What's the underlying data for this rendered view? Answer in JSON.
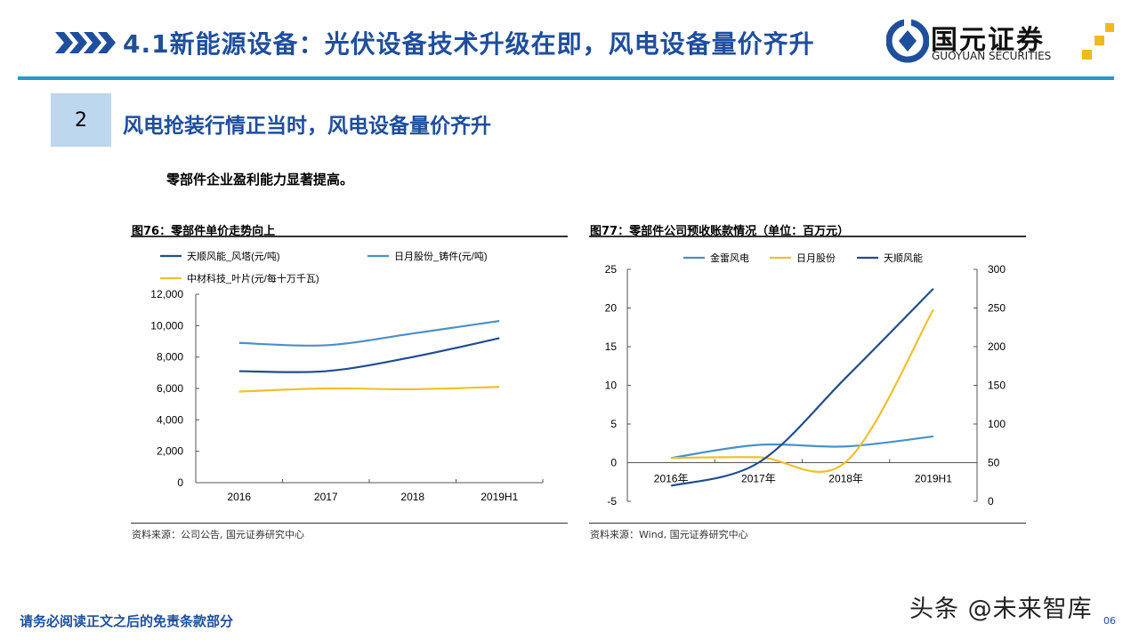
{
  "header": {
    "title": "4.1新能源设备：光伏设备技术升级在即，风电设备量价齐升",
    "logo_cn": "国元证券",
    "logo_en": "GUOYUAN SECURITIES",
    "accent": "#1f4e9c",
    "line_color": "#1e9bd7"
  },
  "section": {
    "number": "2",
    "title": "风电抢装行情正当时，风电设备量价齐升"
  },
  "lead": "零部件企业盈利能力显著提高。",
  "chart_data": [
    {
      "type": "line",
      "title": "图76：零部件单价走势向上",
      "categories": [
        "2016",
        "2017",
        "2018",
        "2019H1"
      ],
      "ylim": [
        0,
        12000
      ],
      "yticks": [
        "0",
        "2,000",
        "4,000",
        "6,000",
        "8,000",
        "10,000",
        "12,000"
      ],
      "legend": "top",
      "series": [
        {
          "name": "天顺风能_风塔(元/吨)",
          "color": "#1f4e8c",
          "values": [
            7100,
            7100,
            8000,
            9200
          ]
        },
        {
          "name": "日月股份_铸件(元/吨)",
          "color": "#4a90c8",
          "values": [
            8900,
            8750,
            9500,
            10300
          ]
        },
        {
          "name": "中材科技_叶片(元/每十万千瓦)",
          "color": "#f0c030",
          "values": [
            5800,
            6000,
            5950,
            6100
          ]
        }
      ],
      "source": "资料来源：公司公告, 国元证券研究中心"
    },
    {
      "type": "line",
      "title": "图77：零部件公司预收账款情况（单位：百万元）",
      "categories": [
        "2016年",
        "2017年",
        "2018年",
        "2019H1"
      ],
      "ylim": [
        -5,
        25
      ],
      "yticks": [
        "-5",
        "0",
        "5",
        "10",
        "15",
        "20",
        "25"
      ],
      "y2lim": [
        0,
        300
      ],
      "y2ticks": [
        "0",
        "50",
        "100",
        "150",
        "200",
        "250",
        "300"
      ],
      "legend": "top",
      "series": [
        {
          "name": "金雷风电",
          "color": "#4a90c8",
          "axis": "left",
          "values": [
            0.6,
            2.3,
            2.1,
            3.4
          ]
        },
        {
          "name": "日月股份",
          "color": "#f0c030",
          "axis": "left",
          "values": [
            0.6,
            0.7,
            0.1,
            19.8
          ]
        },
        {
          "name": "天顺风能",
          "color": "#1f4e8c",
          "axis": "right",
          "values": [
            20,
            50,
            160,
            275
          ]
        }
      ],
      "source": "资料来源：Wind, 国元证券研究中心"
    }
  ],
  "footer": "请务必阅读正文之后的免责条款部分",
  "watermark": "头条 @未来智库",
  "page_number": "06"
}
